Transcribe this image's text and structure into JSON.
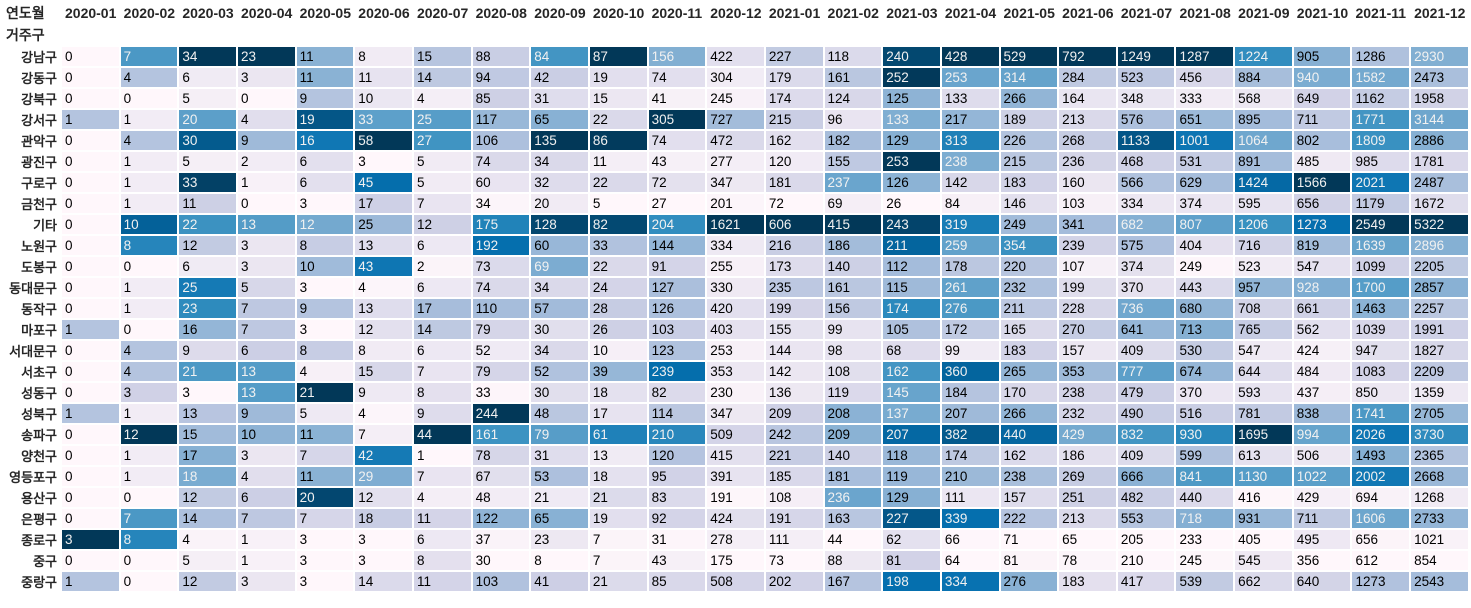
{
  "chart_data": {
    "type": "heatmap",
    "title": "",
    "columns_label": "연도월",
    "index_label": "거주구",
    "colormap": "PuBu",
    "colormap_stops": [
      "#fff7fb",
      "#ece7f2",
      "#d0d1e6",
      "#a6bddb",
      "#74a9cf",
      "#3690c0",
      "#0570b0",
      "#045a8d",
      "#023858"
    ],
    "gradient_axis": "per-column",
    "text_color_light": "#f1f1f1",
    "text_color_dark": "#000000",
    "columns": [
      "2020-01",
      "2020-02",
      "2020-03",
      "2020-04",
      "2020-05",
      "2020-06",
      "2020-07",
      "2020-08",
      "2020-09",
      "2020-10",
      "2020-11",
      "2020-12",
      "2021-01",
      "2021-02",
      "2021-03",
      "2021-04",
      "2021-05",
      "2021-06",
      "2021-07",
      "2021-08",
      "2021-09",
      "2021-10",
      "2021-11",
      "2021-12"
    ],
    "rows": [
      {
        "name": "강남구",
        "values": [
          0,
          7,
          34,
          23,
          11,
          8,
          15,
          88,
          84,
          87,
          156,
          422,
          227,
          118,
          240,
          428,
          529,
          792,
          1249,
          1287,
          1224,
          905,
          1286,
          2930
        ]
      },
      {
        "name": "강동구",
        "values": [
          0,
          4,
          6,
          3,
          11,
          11,
          14,
          94,
          42,
          19,
          74,
          304,
          179,
          161,
          252,
          253,
          314,
          284,
          523,
          456,
          884,
          940,
          1582,
          2473
        ]
      },
      {
        "name": "강북구",
        "values": [
          0,
          0,
          5,
          0,
          9,
          10,
          4,
          85,
          31,
          15,
          41,
          245,
          174,
          124,
          125,
          133,
          266,
          164,
          348,
          333,
          568,
          649,
          1162,
          1958
        ]
      },
      {
        "name": "강서구",
        "values": [
          1,
          1,
          20,
          4,
          19,
          33,
          25,
          117,
          65,
          22,
          305,
          727,
          215,
          96,
          133,
          217,
          189,
          213,
          576,
          651,
          895,
          711,
          1771,
          3144
        ]
      },
      {
        "name": "관악구",
        "values": [
          0,
          4,
          30,
          9,
          16,
          58,
          27,
          106,
          135,
          86,
          74,
          472,
          162,
          182,
          129,
          313,
          226,
          268,
          1133,
          1001,
          1064,
          802,
          1809,
          2886
        ]
      },
      {
        "name": "광진구",
        "values": [
          0,
          1,
          5,
          2,
          6,
          3,
          5,
          74,
          34,
          11,
          43,
          277,
          120,
          155,
          253,
          238,
          215,
          236,
          468,
          531,
          891,
          485,
          985,
          1781
        ]
      },
      {
        "name": "구로구",
        "values": [
          0,
          1,
          33,
          1,
          6,
          45,
          5,
          60,
          32,
          22,
          72,
          347,
          181,
          237,
          126,
          142,
          183,
          160,
          566,
          629,
          1424,
          1566,
          2021,
          2487
        ]
      },
      {
        "name": "금천구",
        "values": [
          0,
          1,
          11,
          0,
          3,
          17,
          7,
          34,
          20,
          5,
          27,
          201,
          72,
          69,
          26,
          84,
          146,
          103,
          334,
          374,
          595,
          656,
          1179,
          1672
        ]
      },
      {
        "name": "기타",
        "values": [
          0,
          10,
          22,
          13,
          12,
          25,
          12,
          175,
          128,
          82,
          204,
          1621,
          606,
          415,
          243,
          319,
          249,
          341,
          682,
          807,
          1206,
          1273,
          2549,
          5322
        ]
      },
      {
        "name": "노원구",
        "values": [
          0,
          8,
          12,
          3,
          8,
          13,
          6,
          192,
          60,
          33,
          144,
          334,
          216,
          186,
          211,
          259,
          354,
          239,
          575,
          404,
          716,
          819,
          1639,
          2896
        ]
      },
      {
        "name": "도봉구",
        "values": [
          0,
          0,
          6,
          3,
          10,
          43,
          2,
          73,
          69,
          22,
          91,
          255,
          173,
          140,
          112,
          178,
          220,
          107,
          374,
          249,
          523,
          547,
          1099,
          2205
        ]
      },
      {
        "name": "동대문구",
        "values": [
          0,
          1,
          25,
          5,
          3,
          4,
          6,
          74,
          34,
          24,
          127,
          330,
          235,
          161,
          115,
          261,
          232,
          199,
          370,
          443,
          957,
          928,
          1700,
          2857
        ]
      },
      {
        "name": "동작구",
        "values": [
          0,
          1,
          23,
          7,
          9,
          13,
          17,
          110,
          57,
          28,
          126,
          420,
          199,
          156,
          174,
          276,
          211,
          228,
          736,
          680,
          708,
          661,
          1463,
          2257
        ]
      },
      {
        "name": "마포구",
        "values": [
          1,
          0,
          16,
          7,
          3,
          12,
          14,
          79,
          30,
          26,
          103,
          403,
          155,
          99,
          105,
          172,
          165,
          270,
          641,
          713,
          765,
          562,
          1039,
          1991
        ]
      },
      {
        "name": "서대문구",
        "values": [
          0,
          4,
          9,
          6,
          8,
          8,
          6,
          52,
          34,
          10,
          123,
          253,
          144,
          98,
          68,
          99,
          183,
          157,
          409,
          530,
          547,
          424,
          947,
          1827
        ]
      },
      {
        "name": "서초구",
        "values": [
          0,
          4,
          21,
          13,
          4,
          15,
          7,
          79,
          52,
          39,
          239,
          353,
          142,
          108,
          162,
          360,
          265,
          353,
          777,
          674,
          644,
          484,
          1083,
          2209
        ]
      },
      {
        "name": "성동구",
        "values": [
          0,
          3,
          3,
          13,
          21,
          9,
          8,
          33,
          30,
          18,
          82,
          230,
          136,
          119,
          145,
          184,
          170,
          238,
          479,
          370,
          593,
          437,
          850,
          1359
        ]
      },
      {
        "name": "성북구",
        "values": [
          1,
          1,
          13,
          9,
          5,
          4,
          9,
          244,
          48,
          17,
          114,
          347,
          209,
          208,
          137,
          207,
          266,
          232,
          490,
          516,
          781,
          838,
          1741,
          2705
        ]
      },
      {
        "name": "송파구",
        "values": [
          0,
          12,
          15,
          10,
          11,
          7,
          44,
          161,
          79,
          61,
          210,
          509,
          242,
          209,
          207,
          382,
          440,
          429,
          832,
          930,
          1695,
          994,
          2026,
          3730
        ]
      },
      {
        "name": "양천구",
        "values": [
          0,
          1,
          17,
          3,
          7,
          42,
          1,
          78,
          31,
          13,
          120,
          415,
          221,
          140,
          118,
          174,
          162,
          186,
          409,
          599,
          613,
          506,
          1493,
          2365
        ]
      },
      {
        "name": "영등포구",
        "values": [
          0,
          1,
          18,
          4,
          11,
          29,
          7,
          67,
          53,
          18,
          95,
          391,
          185,
          181,
          119,
          210,
          238,
          269,
          666,
          841,
          1130,
          1022,
          2002,
          2668
        ]
      },
      {
        "name": "용산구",
        "values": [
          0,
          0,
          12,
          6,
          20,
          12,
          4,
          48,
          21,
          21,
          83,
          191,
          108,
          236,
          129,
          111,
          157,
          251,
          482,
          440,
          416,
          429,
          694,
          1268
        ]
      },
      {
        "name": "은평구",
        "values": [
          0,
          7,
          14,
          7,
          7,
          18,
          11,
          122,
          65,
          19,
          92,
          424,
          191,
          163,
          227,
          339,
          222,
          213,
          553,
          718,
          931,
          711,
          1606,
          2733
        ]
      },
      {
        "name": "종로구",
        "values": [
          3,
          8,
          4,
          1,
          3,
          3,
          6,
          37,
          23,
          7,
          31,
          278,
          111,
          44,
          62,
          66,
          71,
          65,
          205,
          233,
          405,
          495,
          656,
          1021
        ]
      },
      {
        "name": "중구",
        "values": [
          0,
          0,
          5,
          1,
          3,
          3,
          8,
          30,
          8,
          7,
          43,
          175,
          73,
          88,
          81,
          64,
          81,
          78,
          210,
          245,
          545,
          356,
          612,
          854
        ]
      },
      {
        "name": "중랑구",
        "values": [
          1,
          0,
          12,
          3,
          3,
          14,
          11,
          103,
          41,
          21,
          85,
          508,
          202,
          167,
          198,
          334,
          276,
          183,
          417,
          539,
          662,
          640,
          1273,
          2543
        ]
      }
    ]
  }
}
